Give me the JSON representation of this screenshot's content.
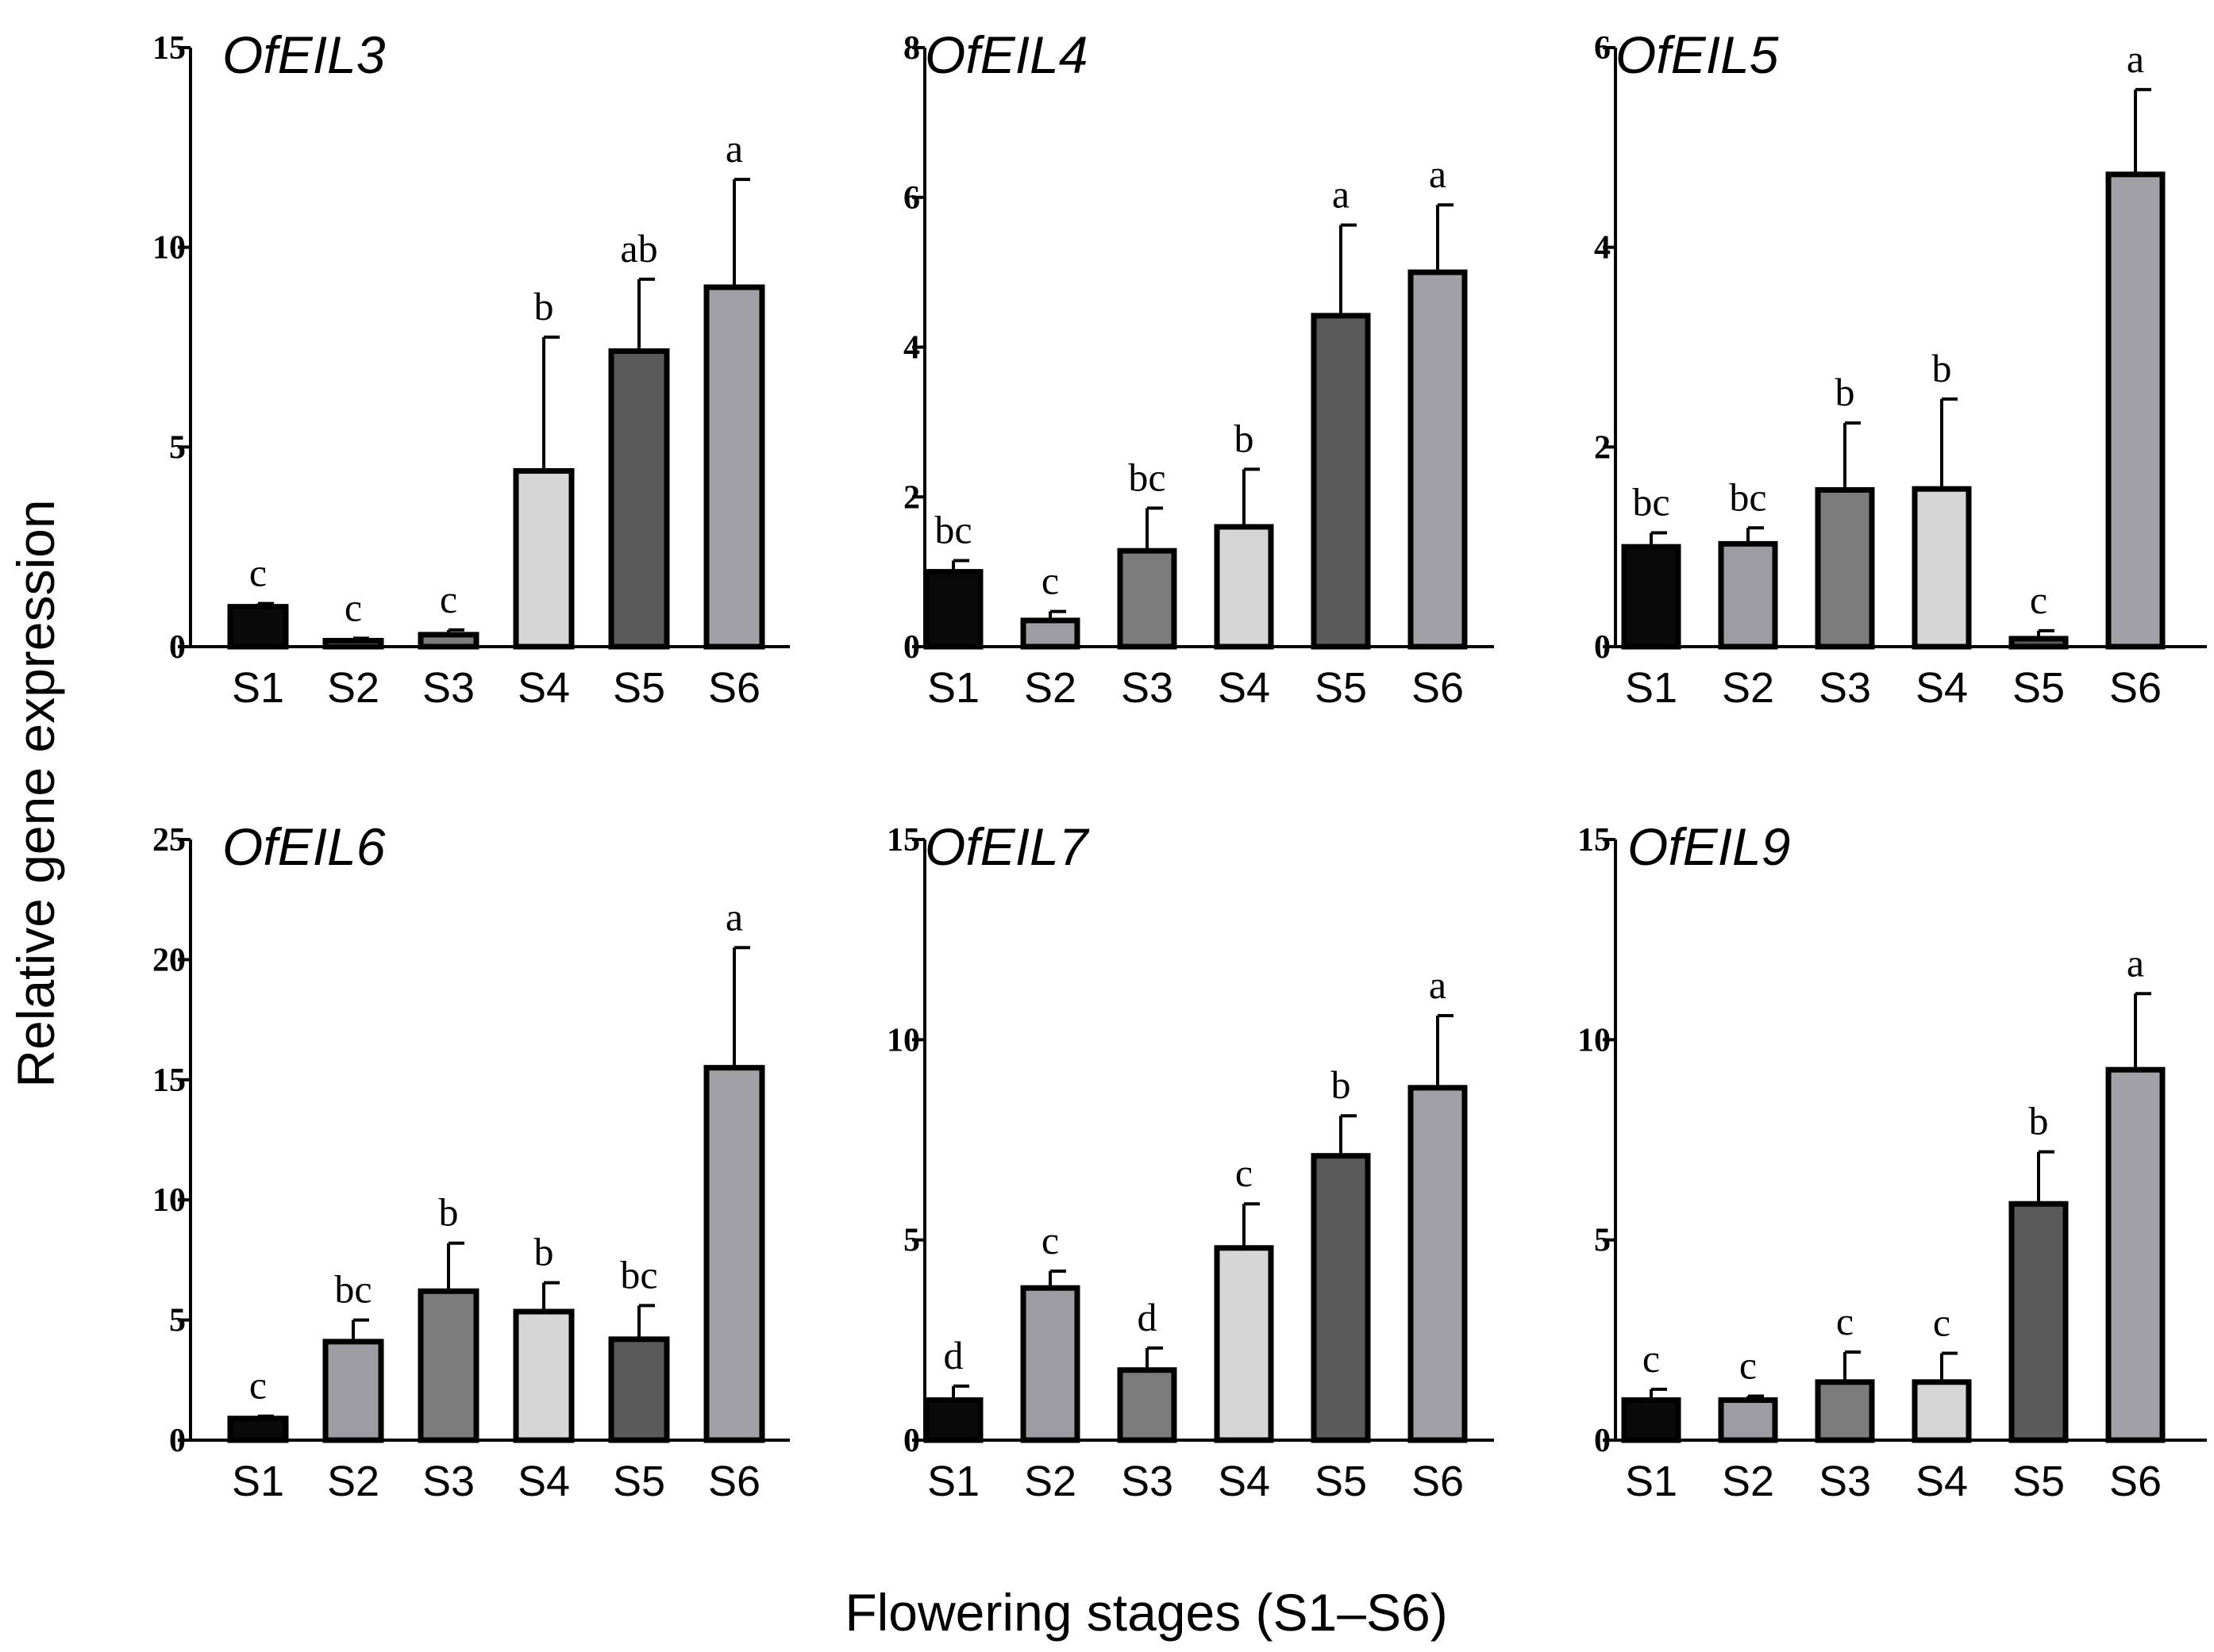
{
  "figure": {
    "ylabel": "Relative gene expression",
    "xlabel": "Flowering stages (S1–S6)"
  },
  "stage_colors": [
    "#0a0a0a",
    "#9c9ca2",
    "#7c7c7c",
    "#d6d6d6",
    "#5a5a5a",
    "#a0a0a6"
  ],
  "chart_data": [
    {
      "type": "bar",
      "title": "OfEIL3",
      "categories": [
        "S1",
        "S2",
        "S3",
        "S4",
        "S5",
        "S6"
      ],
      "values": [
        1.0,
        0.15,
        0.3,
        4.4,
        7.4,
        9.0
      ],
      "errors": [
        0.08,
        0.06,
        0.12,
        3.35,
        1.8,
        2.7
      ],
      "significance": [
        "c",
        "c",
        "c",
        "b",
        "ab",
        "a"
      ],
      "ylim": [
        0,
        15
      ],
      "yticks": [
        0,
        5,
        10,
        15
      ],
      "xlabel": "Flowering stages (S1–S6)",
      "ylabel": "Relative gene expression"
    },
    {
      "type": "bar",
      "title": "OfEIL4",
      "categories": [
        "S1",
        "S2",
        "S3",
        "S4",
        "S5",
        "S6"
      ],
      "values": [
        1.0,
        0.35,
        1.28,
        1.6,
        4.42,
        5.0
      ],
      "errors": [
        0.15,
        0.12,
        0.57,
        0.77,
        1.21,
        0.9
      ],
      "significance": [
        "bc",
        "c",
        "bc",
        "b",
        "a",
        "a"
      ],
      "ylim": [
        0,
        8
      ],
      "yticks": [
        0,
        2,
        4,
        6,
        8
      ],
      "xlabel": "Flowering stages (S1–S6)",
      "ylabel": "Relative gene expression"
    },
    {
      "type": "bar",
      "title": "OfEIL5",
      "categories": [
        "S1",
        "S2",
        "S3",
        "S4",
        "S5",
        "S6"
      ],
      "values": [
        1.0,
        1.03,
        1.57,
        1.58,
        0.08,
        4.73
      ],
      "errors": [
        0.14,
        0.16,
        0.67,
        0.9,
        0.08,
        0.85
      ],
      "significance": [
        "bc",
        "bc",
        "b",
        "b",
        "c",
        "a"
      ],
      "ylim": [
        0,
        6
      ],
      "yticks": [
        0,
        2,
        4,
        6
      ],
      "xlabel": "Flowering stages (S1–S6)",
      "ylabel": "Relative gene expression"
    },
    {
      "type": "bar",
      "title": "OfEIL6",
      "categories": [
        "S1",
        "S2",
        "S3",
        "S4",
        "S5",
        "S6"
      ],
      "values": [
        0.9,
        4.1,
        6.2,
        5.35,
        4.2,
        15.5
      ],
      "errors": [
        0.1,
        0.9,
        2.0,
        1.2,
        1.4,
        5.0
      ],
      "significance": [
        "c",
        "bc",
        "b",
        "b",
        "bc",
        "a"
      ],
      "ylim": [
        0,
        25
      ],
      "yticks": [
        0,
        5,
        10,
        15,
        20,
        25
      ],
      "xlabel": "Flowering stages (S1–S6)",
      "ylabel": "Relative gene expression"
    },
    {
      "type": "bar",
      "title": "OfEIL7",
      "categories": [
        "S1",
        "S2",
        "S3",
        "S4",
        "S5",
        "S6"
      ],
      "values": [
        1.0,
        3.8,
        1.75,
        4.8,
        7.1,
        8.8
      ],
      "errors": [
        0.35,
        0.42,
        0.55,
        1.1,
        1.0,
        1.8
      ],
      "significance": [
        "d",
        "c",
        "d",
        "c",
        "b",
        "a"
      ],
      "ylim": [
        0,
        15
      ],
      "yticks": [
        0,
        5,
        10,
        15
      ],
      "xlabel": "Flowering stages (S1–S6)",
      "ylabel": "Relative gene expression"
    },
    {
      "type": "bar",
      "title": "OfEIL9",
      "categories": [
        "S1",
        "S2",
        "S3",
        "S4",
        "S5",
        "S6"
      ],
      "values": [
        1.0,
        1.0,
        1.45,
        1.45,
        5.9,
        9.25
      ],
      "errors": [
        0.27,
        0.1,
        0.75,
        0.72,
        1.3,
        1.9
      ],
      "significance": [
        "c",
        "c",
        "c",
        "c",
        "b",
        "a"
      ],
      "ylim": [
        0,
        15
      ],
      "yticks": [
        0,
        5,
        10,
        15
      ],
      "xlabel": "Flowering stages (S1–S6)",
      "ylabel": "Relative gene expression"
    }
  ]
}
